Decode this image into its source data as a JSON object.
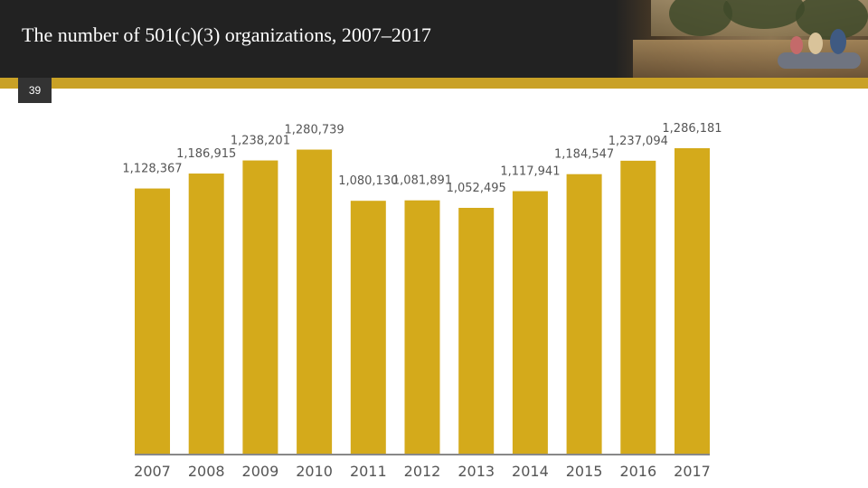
{
  "slide": {
    "title": "The number of 501(c)(3) organizations, 2007–2017",
    "number": "39"
  },
  "colors": {
    "header_bg": "#222222",
    "accent": "#c9a126",
    "bar": "#d4aa1b",
    "label": "#555555",
    "axis": "#888888"
  },
  "chart_data": {
    "type": "bar",
    "title": "The number of 501(c)(3) organizations, 2007–2017",
    "xlabel": "",
    "ylabel": "",
    "grid": false,
    "categories": [
      "2007",
      "2008",
      "2009",
      "2010",
      "2011",
      "2012",
      "2013",
      "2014",
      "2015",
      "2016",
      "2017"
    ],
    "values": [
      1128367,
      1186915,
      1238201,
      1280739,
      1080130,
      1081891,
      1052495,
      1117941,
      1184547,
      1237094,
      1286181
    ],
    "value_labels": [
      "1,128,367",
      "1,186,915",
      "1,238,201",
      "1,280,739",
      "1,080,130",
      "1,081,891",
      "1,052,495",
      "1,117,941",
      "1,184,547",
      "1,237,094",
      "1,286,181"
    ]
  }
}
